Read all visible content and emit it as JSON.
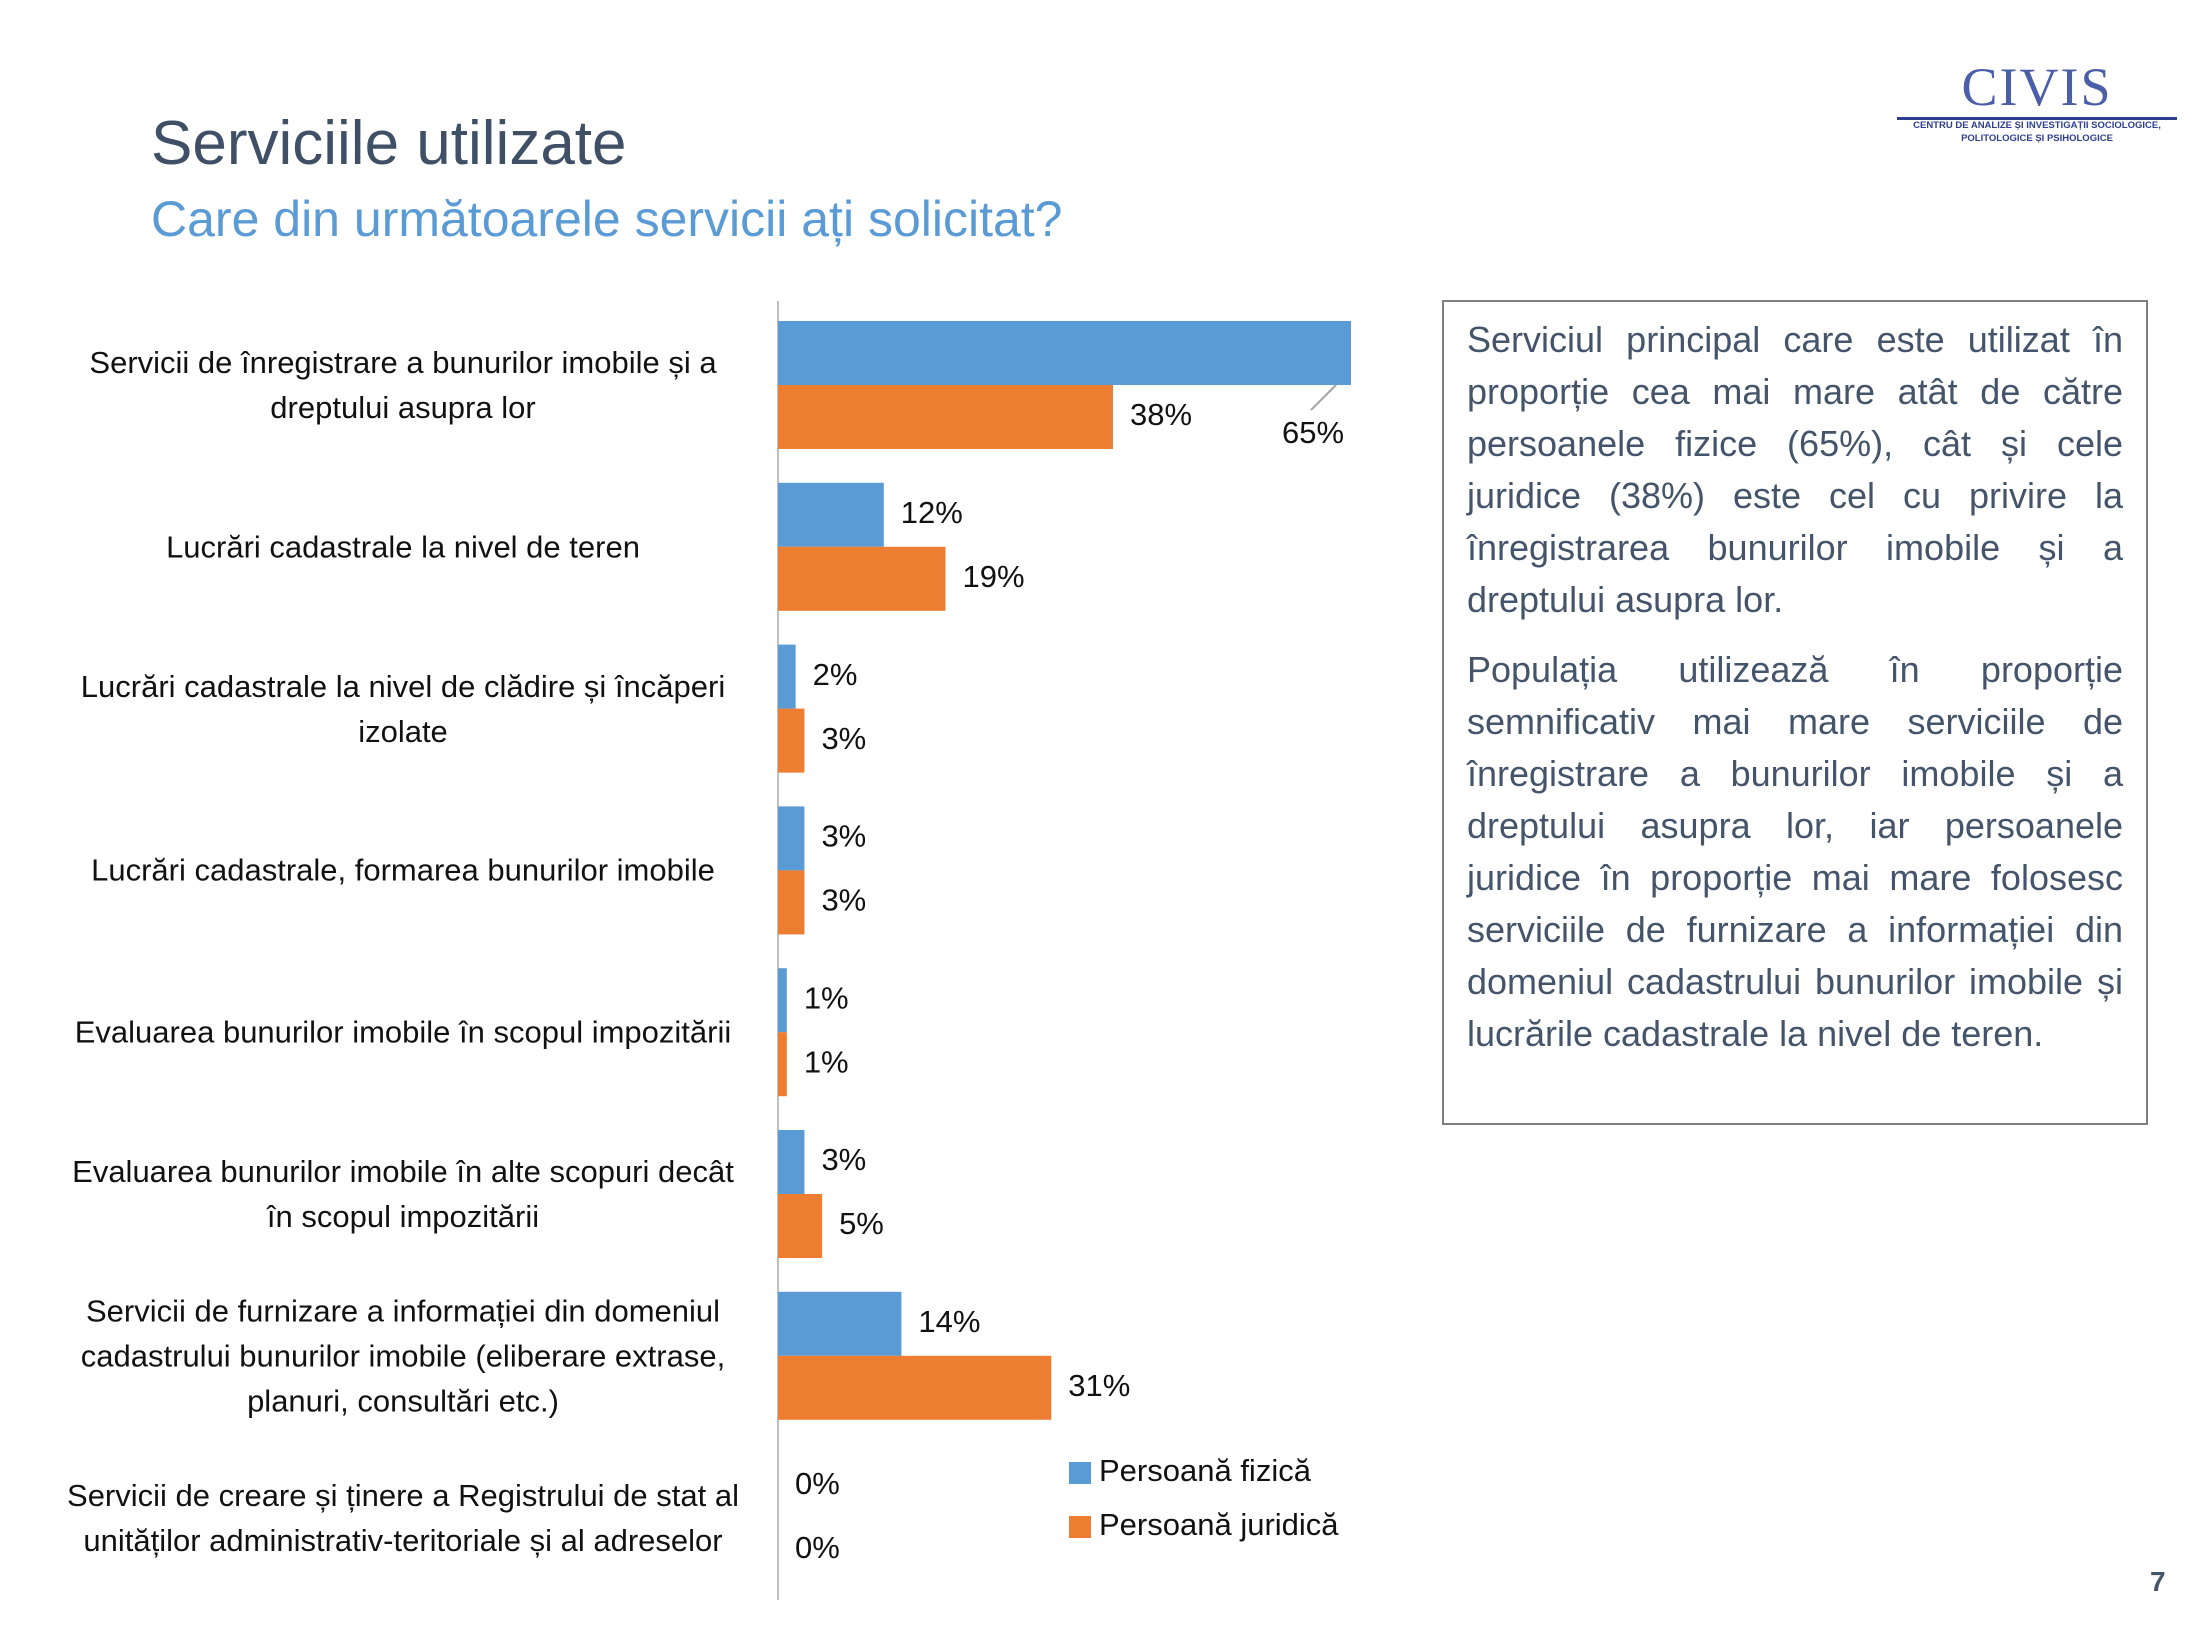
{
  "header": {
    "title": "Serviciile utilizate",
    "subtitle": "Care din următoarele servicii ați solicitat?"
  },
  "logo": {
    "name": "CIVIS",
    "lines": [
      "CENTRU DE ANALIZE ȘI INVESTIGAȚII SOCIOLOGICE,",
      "POLITOLOGICE ȘI PSIHOLOGICE"
    ]
  },
  "chart_data": {
    "type": "hbar",
    "categories": [
      "Servicii de înregistrare a bunurilor imobile și a dreptului asupra lor",
      "Lucrări cadastrale la nivel de teren",
      "Lucrări cadastrale la nivel de clădire și încăperi izolate",
      "Lucrări cadastrale, formarea bunurilor imobile",
      "Evaluarea bunurilor imobile în scopul impozitării",
      "Evaluarea bunurilor imobile în alte scopuri decât în scopul impozitării",
      "Servicii de furnizare a informației din domeniul cadastrului bunurilor imobile (eliberare extrase, planuri, consultări etc.)",
      "Servicii de creare și ținere a Registrului de stat al unităților administrativ-teritoriale și al adreselor"
    ],
    "series": [
      {
        "name": "Persoană fizică",
        "color": "#5b9bd5",
        "values": [
          65,
          12,
          2,
          3,
          1,
          3,
          14,
          0
        ],
        "value_labels": [
          "65%",
          "12%",
          "2%",
          "3%",
          "1%",
          "3%",
          "14%",
          "0%"
        ]
      },
      {
        "name": "Persoană juridică",
        "color": "#ed7d31",
        "values": [
          38,
          19,
          3,
          3,
          1,
          5,
          31,
          0
        ],
        "value_labels": [
          "38%",
          "19%",
          "3%",
          "3%",
          "1%",
          "5%",
          "31%",
          "0%"
        ]
      }
    ],
    "legend": "bottom-right"
  },
  "text_box": {
    "paragraphs": [
      "Serviciul principal care este utilizat în proporție cea mai mare atât de către persoanele fizice (65%), cât și cele juridice (38%) este cel cu privire la înregistrarea bunurilor imobile și a dreptului asupra lor.",
      "Populația utilizează în proporție semnificativ mai mare serviciile de înregistrare a bunurilor imobile și a dreptului asupra lor, iar persoanele juridice în proporție mai mare folosesc serviciile de furnizare a informației din domeniul cadastrului bunurilor imobile și lucrările cadastrale la nivel de teren."
    ]
  },
  "page_number": "7"
}
